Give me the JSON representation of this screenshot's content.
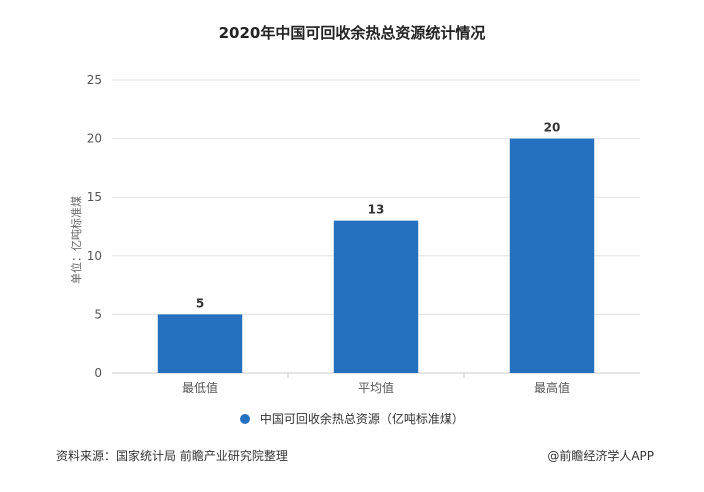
{
  "chart_data": {
    "type": "bar",
    "title": "2020年中国可回收余热总资源统计情况",
    "ylabel": "单位：亿吨标准煤",
    "xlabel": "",
    "categories": [
      "最低值",
      "平均值",
      "最高值"
    ],
    "series": [
      {
        "name": "中国可回收余热总资源（亿吨标准煤）",
        "values": [
          5,
          13,
          20
        ]
      }
    ],
    "ylim": [
      0,
      25
    ],
    "yticks": [
      0,
      5,
      10,
      15,
      20,
      25
    ],
    "grid": true,
    "legend_position": "bottom",
    "bar_color": "#2670c0"
  },
  "footer": {
    "source": "资料来源：国家统计局 前瞻产业研究院整理",
    "brand": "@前瞻经济学人APP"
  }
}
